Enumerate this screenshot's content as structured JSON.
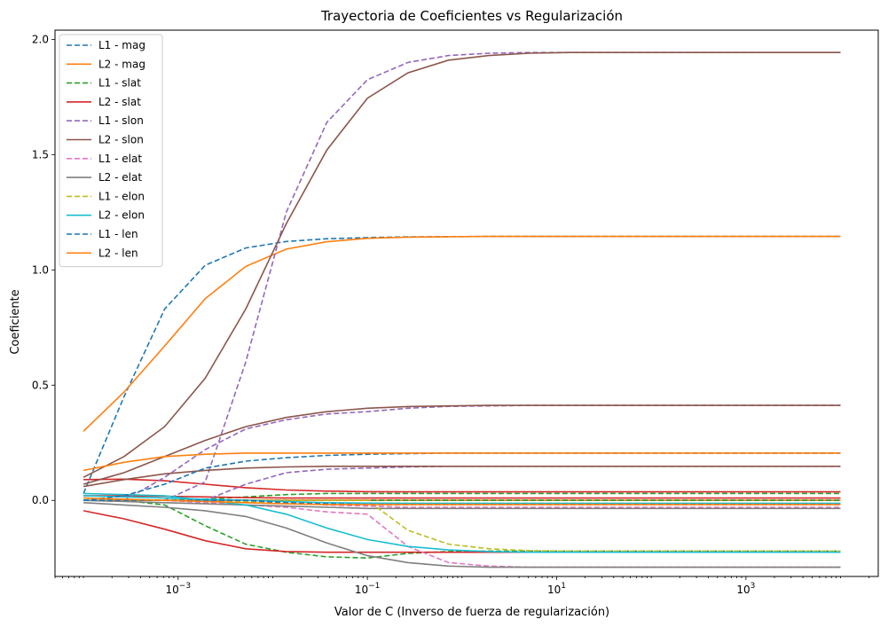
{
  "chart_data": {
    "type": "line",
    "title": "Trayectoria de Coeficientes vs Regularización",
    "xlabel": "Valor de C (Inverso de fuerza de regularización)",
    "ylabel": "Coeficiente",
    "xscale": "log",
    "xlim": [
      5e-05,
      25000
    ],
    "ylim": [
      -0.33,
      2.04
    ],
    "grid": false,
    "legend_position": "top-left",
    "x_ticks": [
      {
        "value": 0.001,
        "base": "10",
        "exp": "−3"
      },
      {
        "value": 0.1,
        "base": "10",
        "exp": "−1"
      },
      {
        "value": 10,
        "base": "10",
        "exp": "1"
      },
      {
        "value": 1000,
        "base": "10",
        "exp": "3"
      }
    ],
    "y_ticks": [
      {
        "value": 0.0,
        "label": "0.0"
      },
      {
        "value": 0.5,
        "label": "0.5"
      },
      {
        "value": 1.0,
        "label": "1.0"
      },
      {
        "value": 1.5,
        "label": "1.5"
      },
      {
        "value": 2.0,
        "label": "2.0"
      }
    ],
    "x": [
      0.0001,
      0.00026827,
      0.00071969,
      0.0019307,
      0.0051795,
      0.013895,
      0.037276,
      0.1,
      0.26827,
      0.71969,
      1.9307,
      5.1795,
      13.895,
      37.276,
      100,
      268.27,
      719.69,
      1930.7,
      5179.5,
      10000
    ],
    "series": [
      {
        "name": "L1 - mag",
        "color": "#1f77b4",
        "dash": true,
        "values": [
          [
            0.03,
            0.45,
            0.83,
            1.02,
            1.095,
            1.123,
            1.135,
            1.14,
            1.143,
            1.144,
            1.145,
            1.145,
            1.145,
            1.145,
            1.145,
            1.145,
            1.145,
            1.145,
            1.145,
            1.145
          ],
          [
            0.0,
            0.0,
            0.0,
            0.0,
            0.0,
            0.0,
            0.0,
            0.0,
            0.0,
            0.0,
            0.0,
            0.0,
            0.0,
            0.0,
            0.0,
            0.0,
            0.0,
            0.0,
            0.0,
            0.0
          ],
          [
            0.0,
            0.0,
            0.0,
            0.0,
            0.0,
            0.0,
            0.0,
            0.0,
            0.0,
            0.0,
            0.0,
            0.0,
            0.0,
            0.0,
            0.0,
            0.0,
            0.0,
            0.0,
            0.0,
            0.0
          ]
        ]
      },
      {
        "name": "L2 - mag",
        "color": "#ff7f0e",
        "dash": false,
        "values": [
          [
            0.3,
            0.47,
            0.67,
            0.875,
            1.015,
            1.09,
            1.122,
            1.137,
            1.142,
            1.144,
            1.145,
            1.145,
            1.145,
            1.145,
            1.145,
            1.145,
            1.145,
            1.145,
            1.145,
            1.145
          ],
          [
            0.0,
            0.0,
            0.0,
            0.0,
            0.0,
            0.0,
            0.0,
            0.0,
            0.0,
            0.0,
            0.0,
            0.0,
            0.0,
            0.0,
            0.0,
            0.0,
            0.0,
            0.0,
            0.0,
            0.0
          ],
          [
            0.0,
            0.0,
            0.0,
            0.0,
            0.0,
            0.0,
            0.0,
            0.0,
            0.0,
            0.0,
            0.0,
            0.0,
            0.0,
            0.0,
            0.0,
            0.0,
            0.0,
            0.0,
            0.0,
            0.0
          ]
        ]
      },
      {
        "name": "L1 - slat",
        "color": "#2ca02c",
        "dash": true,
        "values": [
          [
            0.0,
            0.0,
            -0.02,
            -0.11,
            -0.19,
            -0.225,
            -0.245,
            -0.25,
            -0.23,
            -0.222,
            -0.22,
            -0.22,
            -0.22,
            -0.22,
            -0.22,
            -0.22,
            -0.22,
            -0.22,
            -0.22,
            -0.22
          ],
          [
            0.0,
            0.0,
            0.0,
            0.005,
            0.015,
            0.025,
            0.03,
            0.03,
            0.03,
            0.03,
            0.03,
            0.03,
            0.03,
            0.03,
            0.03,
            0.03,
            0.03,
            0.03,
            0.03,
            0.03
          ],
          [
            0.0,
            0.0,
            0.0,
            0.0,
            0.0,
            0.0,
            0.0,
            0.0,
            0.0,
            0.0,
            0.0,
            0.0,
            0.0,
            0.0,
            0.0,
            0.0,
            0.0,
            0.0,
            0.0,
            0.0
          ]
        ]
      },
      {
        "name": "L2 - slat",
        "color": "#d62728",
        "dash": false,
        "values": [
          [
            -0.045,
            -0.08,
            -0.125,
            -0.175,
            -0.21,
            -0.222,
            -0.225,
            -0.225,
            -0.225,
            -0.225,
            -0.225,
            -0.225,
            -0.225,
            -0.225,
            -0.225,
            -0.225,
            -0.225,
            -0.225,
            -0.225,
            -0.225
          ],
          [
            0.09,
            0.092,
            0.085,
            0.07,
            0.055,
            0.045,
            0.04,
            0.038,
            0.037,
            0.037,
            0.037,
            0.037,
            0.037,
            0.037,
            0.037,
            0.037,
            0.037,
            0.037,
            0.037,
            0.037
          ],
          [
            0.02,
            0.02,
            0.018,
            0.015,
            0.012,
            0.01,
            0.01,
            0.01,
            0.01,
            0.01,
            0.01,
            0.01,
            0.01,
            0.01,
            0.01,
            0.01,
            0.01,
            0.01,
            0.01,
            0.01
          ]
        ]
      },
      {
        "name": "L1 - slon",
        "color": "#9467bd",
        "dash": true,
        "values": [
          [
            0.0,
            0.0,
            0.0,
            0.08,
            0.6,
            1.25,
            1.64,
            1.825,
            1.9,
            1.93,
            1.94,
            1.943,
            1.943,
            1.943,
            1.943,
            1.943,
            1.943,
            1.943,
            1.943,
            1.943
          ],
          [
            0.0,
            0.0,
            0.1,
            0.22,
            0.31,
            0.35,
            0.375,
            0.385,
            0.4,
            0.408,
            0.41,
            0.412,
            0.412,
            0.412,
            0.412,
            0.412,
            0.412,
            0.412,
            0.412,
            0.412
          ],
          [
            0.0,
            0.0,
            0.0,
            0.0,
            0.07,
            0.12,
            0.135,
            0.14,
            0.145,
            0.148,
            0.148,
            0.148,
            0.148,
            0.148,
            0.148,
            0.148,
            0.148,
            0.148,
            0.148,
            0.148
          ]
        ]
      },
      {
        "name": "L2 - slon",
        "color": "#8c564b",
        "dash": false,
        "values": [
          [
            0.1,
            0.19,
            0.32,
            0.53,
            0.83,
            1.2,
            1.52,
            1.745,
            1.855,
            1.91,
            1.93,
            1.94,
            1.943,
            1.943,
            1.943,
            1.943,
            1.943,
            1.943,
            1.943,
            1.943
          ],
          [
            0.07,
            0.12,
            0.19,
            0.26,
            0.32,
            0.36,
            0.385,
            0.4,
            0.407,
            0.41,
            0.412,
            0.412,
            0.412,
            0.412,
            0.412,
            0.412,
            0.412,
            0.412,
            0.412,
            0.412
          ],
          [
            0.06,
            0.09,
            0.115,
            0.13,
            0.14,
            0.145,
            0.148,
            0.148,
            0.148,
            0.148,
            0.148,
            0.148,
            0.148,
            0.148,
            0.148,
            0.148,
            0.148,
            0.148,
            0.148,
            0.148
          ]
        ]
      },
      {
        "name": "L1 - elat",
        "color": "#e377c2",
        "dash": true,
        "values": [
          [
            0.0,
            0.0,
            0.0,
            -0.01,
            -0.02,
            -0.03,
            -0.05,
            -0.06,
            -0.2,
            -0.27,
            -0.285,
            -0.29,
            -0.29,
            -0.29,
            -0.29,
            -0.29,
            -0.29,
            -0.29,
            -0.29,
            -0.29
          ],
          [
            0.0,
            0.0,
            0.0,
            0.0,
            0.0,
            -0.01,
            -0.02,
            -0.025,
            -0.03,
            -0.03,
            -0.03,
            -0.03,
            -0.03,
            -0.03,
            -0.03,
            -0.03,
            -0.03,
            -0.03,
            -0.03,
            -0.03
          ]
        ]
      },
      {
        "name": "L2 - elat",
        "color": "#7f7f7f",
        "dash": false,
        "values": [
          [
            -0.01,
            -0.02,
            -0.03,
            -0.045,
            -0.07,
            -0.12,
            -0.185,
            -0.24,
            -0.27,
            -0.285,
            -0.29,
            -0.29,
            -0.29,
            -0.29,
            -0.29,
            -0.29,
            -0.29,
            -0.29,
            -0.29,
            -0.29
          ],
          [
            0.0,
            -0.005,
            -0.01,
            -0.015,
            -0.02,
            -0.025,
            -0.03,
            -0.035,
            -0.035,
            -0.035,
            -0.035,
            -0.035,
            -0.035,
            -0.035,
            -0.035,
            -0.035,
            -0.035,
            -0.035,
            -0.035,
            -0.035
          ]
        ]
      },
      {
        "name": "L1 - elon",
        "color": "#bcbd22",
        "dash": true,
        "values": [
          [
            0.0,
            0.0,
            0.0,
            0.0,
            0.0,
            0.0,
            0.0,
            0.0,
            -0.13,
            -0.19,
            -0.21,
            -0.218,
            -0.22,
            -0.22,
            -0.22,
            -0.22,
            -0.22,
            -0.22,
            -0.22,
            -0.22
          ],
          [
            0.0,
            0.0,
            0.0,
            0.0,
            -0.005,
            -0.01,
            -0.012,
            -0.013,
            -0.013,
            -0.013,
            -0.013,
            -0.013,
            -0.013,
            -0.013,
            -0.013,
            -0.013,
            -0.013,
            -0.013,
            -0.013,
            -0.013
          ]
        ]
      },
      {
        "name": "L2 - elon",
        "color": "#17becf",
        "dash": false,
        "values": [
          [
            0.03,
            0.025,
            0.02,
            0.0,
            -0.02,
            -0.06,
            -0.12,
            -0.17,
            -0.2,
            -0.215,
            -0.222,
            -0.225,
            -0.225,
            -0.225,
            -0.225,
            -0.225,
            -0.225,
            -0.225,
            -0.225,
            -0.225
          ],
          [
            0.02,
            0.015,
            0.01,
            0.005,
            0.0,
            -0.005,
            -0.01,
            -0.012,
            -0.013,
            -0.013,
            -0.013,
            -0.013,
            -0.013,
            -0.013,
            -0.013,
            -0.013,
            -0.013,
            -0.013,
            -0.013,
            -0.013
          ]
        ]
      },
      {
        "name": "L1 - len",
        "color": "#1f77b4",
        "dash": true,
        "values": [
          [
            0.0,
            0.02,
            0.07,
            0.14,
            0.17,
            0.185,
            0.195,
            0.2,
            0.203,
            0.205,
            0.205,
            0.205,
            0.205,
            0.205,
            0.205,
            0.205,
            0.205,
            0.205,
            0.205,
            0.205
          ],
          [
            0.0,
            0.0,
            0.0,
            0.0,
            0.0,
            -0.01,
            -0.015,
            -0.018,
            -0.018,
            -0.018,
            -0.018,
            -0.018,
            -0.018,
            -0.018,
            -0.018,
            -0.018,
            -0.018,
            -0.018,
            -0.018,
            -0.018
          ]
        ]
      },
      {
        "name": "L2 - len",
        "color": "#ff7f0e",
        "dash": false,
        "values": [
          [
            0.13,
            0.165,
            0.19,
            0.2,
            0.205,
            0.205,
            0.205,
            0.205,
            0.205,
            0.205,
            0.205,
            0.205,
            0.205,
            0.205,
            0.205,
            0.205,
            0.205,
            0.205,
            0.205,
            0.205
          ],
          [
            0.01,
            0.005,
            0.0,
            -0.005,
            -0.01,
            -0.015,
            -0.018,
            -0.018,
            -0.018,
            -0.018,
            -0.018,
            -0.018,
            -0.018,
            -0.018,
            -0.018,
            -0.018,
            -0.018,
            -0.018,
            -0.018,
            -0.018
          ]
        ]
      }
    ]
  }
}
